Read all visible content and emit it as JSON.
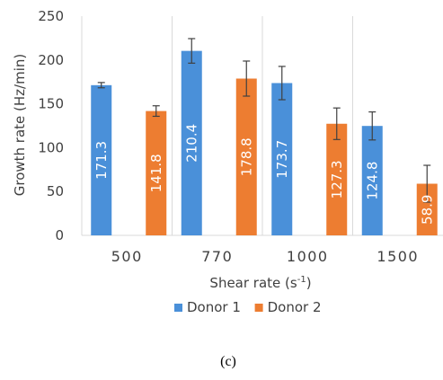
{
  "chart_data": {
    "type": "bar",
    "categories": [
      "500",
      "770",
      "1000",
      "1500"
    ],
    "series": [
      {
        "name": "Donor 1",
        "color": "#4A90D9",
        "values": [
          171.3,
          210.4,
          173.7,
          124.8
        ],
        "errors": [
          3,
          14,
          19,
          16
        ],
        "labels": [
          "171.3",
          "210.4",
          "173.7",
          "124.8"
        ]
      },
      {
        "name": "Donor 2",
        "color": "#ED7D31",
        "values": [
          141.8,
          178.8,
          127.3,
          58.9
        ],
        "errors": [
          6,
          20,
          18,
          21
        ],
        "labels": [
          "141.8",
          "178.8",
          "127.3",
          "58.9"
        ]
      }
    ],
    "ylim": [
      0,
      250
    ],
    "yticks": [
      "0",
      "50",
      "100",
      "150",
      "200",
      "250"
    ],
    "ylabel": "Growth rate (Hz/min)",
    "xlabel": {
      "main": "Shear rate (s",
      "sup": "-1",
      "tail": ")"
    },
    "grid": false,
    "category_dividers": true,
    "legend_position": "bottom"
  },
  "caption": "(c)"
}
